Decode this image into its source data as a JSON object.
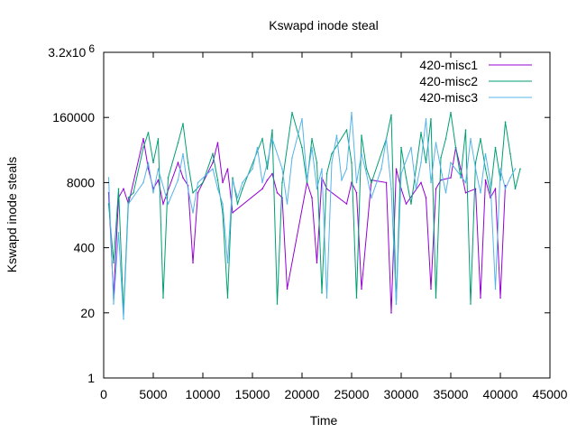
{
  "chart_data": {
    "type": "line",
    "title": "Kswapd inode steal",
    "xlabel": "Time",
    "ylabel": "Kswapd inode steals",
    "xlim": [
      0,
      45000
    ],
    "ylim_log": [
      1,
      3200000
    ],
    "y_scale": "log",
    "grid": false,
    "legend_position": "top-right",
    "x_ticks": [
      {
        "value": 0,
        "label": "0"
      },
      {
        "value": 5000,
        "label": "5000"
      },
      {
        "value": 10000,
        "label": "10000"
      },
      {
        "value": 15000,
        "label": "15000"
      },
      {
        "value": 20000,
        "label": "20000"
      },
      {
        "value": 25000,
        "label": "25000"
      },
      {
        "value": 30000,
        "label": "30000"
      },
      {
        "value": 35000,
        "label": "35000"
      },
      {
        "value": 40000,
        "label": "40000"
      },
      {
        "value": 45000,
        "label": "45000"
      }
    ],
    "y_ticks": [
      {
        "value": 1,
        "label": "1"
      },
      {
        "value": 20,
        "label": "20"
      },
      {
        "value": 400,
        "label": "400"
      },
      {
        "value": 8000,
        "label": "8000"
      },
      {
        "value": 160000,
        "label": "160000"
      },
      {
        "value": 3200000,
        "label": "3.2x10",
        "exp": "6"
      }
    ],
    "series": [
      {
        "name": "420-misc1",
        "color": "#9400d3",
        "x": [
          500,
          1000,
          1500,
          2000,
          2500,
          4000,
          4500,
          5000,
          5500,
          6000,
          7500,
          8000,
          8500,
          9000,
          9500,
          11000,
          11500,
          12000,
          12500,
          13000,
          16000,
          16500,
          17000,
          17500,
          18000,
          18500,
          20500,
          21000,
          21500,
          22000,
          22500,
          24500,
          25000,
          25500,
          26000,
          27000,
          28500,
          29000,
          29500,
          30000,
          30500,
          32000,
          32500,
          33000,
          33500,
          34000,
          35000,
          35500,
          36000,
          36500,
          37500,
          38000,
          38500,
          39000,
          39500,
          40000,
          40500
        ],
        "values": [
          5000,
          40,
          4000,
          6000,
          3000,
          60000,
          15000,
          6000,
          9000,
          3000,
          20000,
          10000,
          7000,
          200,
          5000,
          20000,
          50000,
          8000,
          15000,
          2000,
          6000,
          9000,
          12000,
          5000,
          4000,
          60,
          8000,
          4000,
          200,
          10000,
          6000,
          3000,
          8000,
          5000,
          60,
          9000,
          8000,
          20,
          15000,
          6000,
          3000,
          8000,
          4000,
          60,
          6000,
          9000,
          10000,
          40000,
          15000,
          5000,
          6000,
          40,
          9000,
          4000,
          6000,
          40,
          7000
        ]
      },
      {
        "name": "420-misc2",
        "color": "#009e73",
        "x": [
          500,
          1000,
          1500,
          2000,
          2500,
          3000,
          4000,
          4500,
          5000,
          5500,
          6000,
          6500,
          7500,
          8000,
          8500,
          9000,
          10000,
          11000,
          11500,
          12000,
          12500,
          13000,
          13500,
          14000,
          16000,
          16500,
          17000,
          17500,
          18000,
          19000,
          20000,
          20500,
          21000,
          21500,
          22000,
          22500,
          23000,
          24500,
          25000,
          25500,
          26000,
          26500,
          27000,
          28500,
          29000,
          29500,
          30000,
          30500,
          31000,
          32000,
          32500,
          33000,
          33500,
          34000,
          34500,
          35000,
          35500,
          36000,
          36500,
          37000,
          37500,
          38000,
          38500,
          39000,
          39500,
          40000,
          40500,
          41000,
          41500,
          42000
        ],
        "values": [
          3000,
          200,
          6000,
          20,
          4000,
          5000,
          40000,
          80000,
          20000,
          60000,
          40,
          10000,
          50000,
          120000,
          20000,
          5000,
          8000,
          30000,
          9000,
          2000,
          40,
          10000,
          3000,
          6000,
          60000,
          15000,
          90000,
          30,
          8000,
          200000,
          40000,
          8000,
          60000,
          20000,
          50,
          12000,
          30000,
          90000,
          20000,
          40,
          70000,
          15000,
          8000,
          60000,
          180000,
          30,
          40000,
          10000,
          3000,
          80000,
          20000,
          150000,
          40,
          25000,
          60000,
          200000,
          40000,
          10000,
          90000,
          30,
          20000,
          60000,
          15000,
          5000,
          40000,
          9000,
          130000,
          30000,
          6000,
          15000
        ]
      },
      {
        "name": "420-misc3",
        "color": "#56b4e9",
        "x": [
          500,
          1000,
          1500,
          2000,
          2500,
          4000,
          4500,
          5000,
          5500,
          6500,
          7500,
          8000,
          8500,
          9000,
          9500,
          11000,
          11500,
          12000,
          12500,
          13000,
          13500,
          14000,
          15000,
          15500,
          16000,
          16500,
          17000,
          18000,
          18500,
          19000,
          20000,
          20500,
          21000,
          21500,
          22000,
          22500,
          23000,
          23500,
          24000,
          24500,
          25000,
          25500,
          26000,
          26500,
          27000,
          28000,
          28500,
          29000,
          29500,
          30000,
          31000,
          31500,
          32000,
          32500,
          33000,
          33500,
          34000,
          34500,
          35000,
          36500,
          37000,
          37500,
          38000,
          38500,
          39000,
          39500,
          40000,
          40500,
          41000,
          41500
        ],
        "values": [
          10000,
          30,
          800,
          15,
          3000,
          8000,
          20000,
          5000,
          15000,
          3000,
          9000,
          30000,
          6000,
          2000,
          8000,
          15000,
          6000,
          3000,
          200,
          9000,
          4000,
          8000,
          15000,
          40000,
          8000,
          20000,
          60000,
          15000,
          3000,
          25000,
          150000,
          9000,
          40000,
          6000,
          15000,
          40,
          20000,
          70000,
          9000,
          15000,
          200000,
          8000,
          30000,
          12000,
          4000,
          15000,
          60000,
          6000,
          30,
          12000,
          40000,
          6000,
          20000,
          150000,
          8000,
          50000,
          15000,
          5000,
          20000,
          8000,
          60000,
          15000,
          5000,
          30000,
          8000,
          60,
          15000,
          6000,
          10000,
          15000
        ]
      }
    ]
  }
}
